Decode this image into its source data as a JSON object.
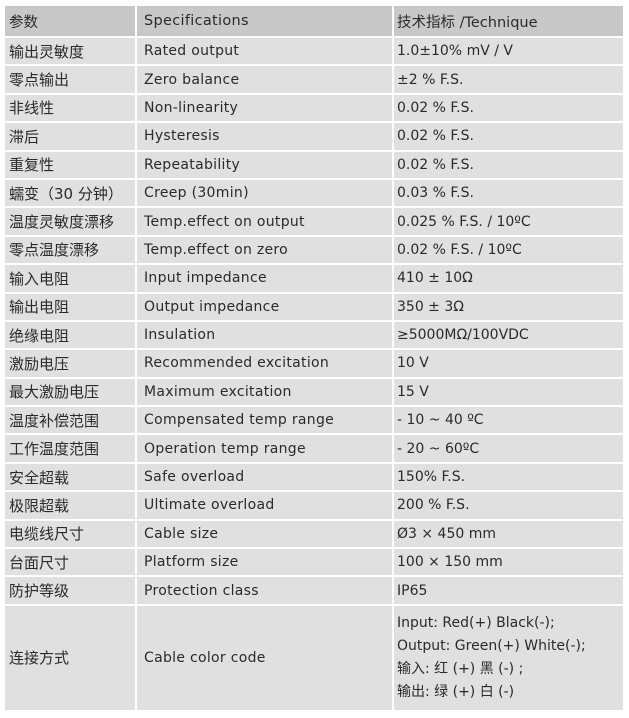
{
  "header": {
    "col1": "参数",
    "col2": "Specifications",
    "col3": "技术指标 /Technique"
  },
  "rows": [
    {
      "cn": "输出灵敏度",
      "en": "Rated output",
      "value": "1.0±10% mV / V"
    },
    {
      "cn": "零点输出",
      "en": "Zero balance",
      "value": "±2 % F.S."
    },
    {
      "cn": "非线性",
      "en": "Non-linearity",
      "value": "0.02 % F.S."
    },
    {
      "cn": "滞后",
      "en": "Hysteresis",
      "value": "0.02 % F.S."
    },
    {
      "cn": "重复性",
      "en": "Repeatability",
      "value": "0.02 % F.S."
    },
    {
      "cn": "蠕变（30 分钟）",
      "en": "Creep (30min)",
      "value": "0.03 % F.S."
    },
    {
      "cn": "温度灵敏度漂移",
      "en": "Temp.effect on output",
      "value": "0.025 % F.S. / 10ºC"
    },
    {
      "cn": "零点温度漂移",
      "en": "Temp.effect on zero",
      "value": "0.02 % F.S. / 10ºC"
    },
    {
      "cn": "输入电阻",
      "en": "Input impedance",
      "value": "410 ± 10Ω"
    },
    {
      "cn": "输出电阻",
      "en": "Output impedance",
      "value": "350 ± 3Ω"
    },
    {
      "cn": "绝缘电阻",
      "en": "Insulation",
      "value": "≥5000MΩ/100VDC"
    },
    {
      "cn": "激励电压",
      "en": "Recommended excitation",
      "value": "10 V"
    },
    {
      "cn": "最大激励电压",
      "en": "Maximum excitation",
      "value": "15 V"
    },
    {
      "cn": "温度补偿范围",
      "en": "Compensated temp range",
      "value": "- 10 ~ 40 ºC"
    },
    {
      "cn": "工作温度范围",
      "en": "Operation temp range",
      "value": "- 20 ~ 60ºC"
    },
    {
      "cn": "安全超载",
      "en": "Safe overload",
      "value": "150% F.S."
    },
    {
      "cn": "极限超载",
      "en": "Ultimate overload",
      "value": "200 % F.S."
    },
    {
      "cn": "电缆线尺寸",
      "en": "Cable size",
      "value": "Ø3 × 450 mm"
    },
    {
      "cn": "台面尺寸",
      "en": "Platform size",
      "value": "100 × 150 mm"
    },
    {
      "cn": "防护等级",
      "en": "Protection class",
      "value": "IP65"
    }
  ],
  "last_row": {
    "cn": "连接方式",
    "en": "Cable color code",
    "lines": [
      "Input: Red(+) Black(-);",
      "Output: Green(+) White(-);",
      "输入:  红 (+)     黑 (-) ;",
      "输出:  绿 (+)     白 (-)"
    ]
  }
}
